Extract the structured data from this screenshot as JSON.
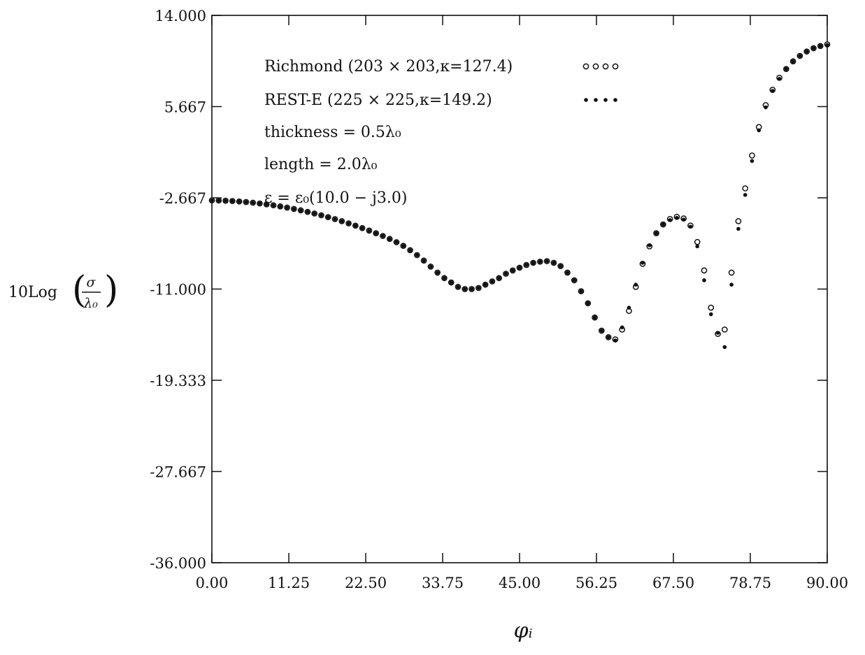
{
  "chart_data": {
    "type": "scatter",
    "xlabel": "φᵢ",
    "ylabel": "10Log(σ/λ₀)",
    "ylabel_parts": {
      "prefix": "10Log",
      "numerator": "σ",
      "denominator": "λ₀"
    },
    "xlim": [
      0,
      90
    ],
    "ylim": [
      -36,
      14
    ],
    "x_ticks": [
      "0.00",
      "11.25",
      "22.50",
      "33.75",
      "45.00",
      "56.25",
      "67.50",
      "78.75",
      "90.00"
    ],
    "x_tick_values": [
      0,
      11.25,
      22.5,
      33.75,
      45,
      56.25,
      67.5,
      78.75,
      90
    ],
    "y_ticks": [
      "14.000",
      "5.667",
      "-2.667",
      "-11.000",
      "-19.333",
      "-27.667",
      "-36.000"
    ],
    "y_tick_values": [
      14,
      5.667,
      -2.667,
      -11,
      -19.333,
      -27.667,
      -36
    ],
    "grid": false,
    "legend_position": "top-left",
    "annotations": [
      "thickness = 0.5λ₀",
      "length = 2.0λ₀",
      "ε = ε₀(10.0 − j3.0)"
    ],
    "series": [
      {
        "name": "Richmond (203 × 203,κ=127.4)",
        "marker": "open-circle",
        "legend_symbol": "∘∘∘∘",
        "x": [
          0,
          1,
          2,
          3,
          4,
          5,
          6,
          7,
          8,
          9,
          10,
          11,
          12,
          13,
          14,
          15,
          16,
          17,
          18,
          19,
          20,
          21,
          22,
          23,
          24,
          25,
          26,
          27,
          28,
          29,
          30,
          31,
          32,
          33,
          34,
          35,
          36,
          37,
          38,
          39,
          40,
          41,
          42,
          43,
          44,
          45,
          46,
          47,
          48,
          49,
          50,
          51,
          52,
          53,
          54,
          55,
          56,
          57,
          58,
          59,
          60,
          61,
          62,
          63,
          64,
          65,
          66,
          67,
          68,
          69,
          70,
          71,
          72,
          73,
          74,
          75,
          76,
          77,
          78,
          79,
          80,
          81,
          82,
          83,
          84,
          85,
          86,
          87,
          88,
          89,
          90
        ],
        "y": [
          -2.9,
          -2.91,
          -2.93,
          -2.96,
          -3.0,
          -3.05,
          -3.11,
          -3.18,
          -3.26,
          -3.35,
          -3.45,
          -3.56,
          -3.68,
          -3.81,
          -3.95,
          -4.1,
          -4.26,
          -4.43,
          -4.61,
          -4.8,
          -5.0,
          -5.21,
          -5.43,
          -5.66,
          -5.9,
          -6.15,
          -6.42,
          -6.72,
          -7.05,
          -7.45,
          -7.9,
          -8.4,
          -8.95,
          -9.5,
          -10.0,
          -10.4,
          -10.8,
          -11.0,
          -11.0,
          -10.9,
          -10.6,
          -10.3,
          -10.0,
          -9.6,
          -9.3,
          -9.05,
          -8.8,
          -8.6,
          -8.5,
          -8.45,
          -8.6,
          -8.9,
          -9.5,
          -10.2,
          -11.2,
          -12.3,
          -13.6,
          -14.8,
          -15.4,
          -15.6,
          -14.7,
          -13.0,
          -10.8,
          -8.7,
          -7.1,
          -5.9,
          -5.1,
          -4.6,
          -4.4,
          -4.55,
          -5.2,
          -6.7,
          -9.3,
          -12.7,
          -15.1,
          -14.7,
          -9.5,
          -4.8,
          -1.8,
          1.2,
          3.8,
          5.8,
          7.2,
          8.3,
          9.1,
          9.8,
          10.3,
          10.7,
          11.0,
          11.2,
          11.35
        ]
      },
      {
        "name": "REST-E (225 × 225,κ=149.2)",
        "marker": "filled-dot",
        "legend_symbol": "••••",
        "x": [
          0,
          1,
          2,
          3,
          4,
          5,
          6,
          7,
          8,
          9,
          10,
          11,
          12,
          13,
          14,
          15,
          16,
          17,
          18,
          19,
          20,
          21,
          22,
          23,
          24,
          25,
          26,
          27,
          28,
          29,
          30,
          31,
          32,
          33,
          34,
          35,
          36,
          37,
          38,
          39,
          40,
          41,
          42,
          43,
          44,
          45,
          46,
          47,
          48,
          49,
          50,
          51,
          52,
          53,
          54,
          55,
          56,
          57,
          58,
          59,
          60,
          61,
          62,
          63,
          64,
          65,
          66,
          67,
          68,
          69,
          70,
          71,
          72,
          73,
          74,
          75,
          76,
          77,
          78,
          79,
          80,
          81,
          82,
          83,
          84,
          85,
          86,
          87,
          88,
          89,
          90
        ],
        "y": [
          -2.9,
          -2.91,
          -2.93,
          -2.96,
          -3.0,
          -3.05,
          -3.11,
          -3.18,
          -3.26,
          -3.35,
          -3.45,
          -3.56,
          -3.68,
          -3.81,
          -3.95,
          -4.1,
          -4.26,
          -4.43,
          -4.61,
          -4.8,
          -5.0,
          -5.21,
          -5.43,
          -5.66,
          -5.9,
          -6.15,
          -6.42,
          -6.72,
          -7.05,
          -7.45,
          -7.9,
          -8.4,
          -8.95,
          -9.5,
          -10.0,
          -10.4,
          -10.8,
          -11.0,
          -11.0,
          -10.9,
          -10.6,
          -10.3,
          -10.0,
          -9.6,
          -9.3,
          -9.05,
          -8.8,
          -8.6,
          -8.5,
          -8.45,
          -8.6,
          -8.9,
          -9.5,
          -10.2,
          -11.2,
          -12.3,
          -13.6,
          -14.8,
          -15.4,
          -15.7,
          -14.5,
          -12.7,
          -10.6,
          -8.6,
          -7.0,
          -5.9,
          -5.1,
          -4.7,
          -4.5,
          -4.65,
          -5.3,
          -7.1,
          -10.2,
          -13.3,
          -15.0,
          -16.3,
          -10.6,
          -5.5,
          -2.4,
          0.7,
          3.5,
          5.6,
          7.1,
          8.2,
          9.1,
          9.8,
          10.3,
          10.7,
          11.0,
          11.2,
          11.3
        ]
      }
    ]
  }
}
